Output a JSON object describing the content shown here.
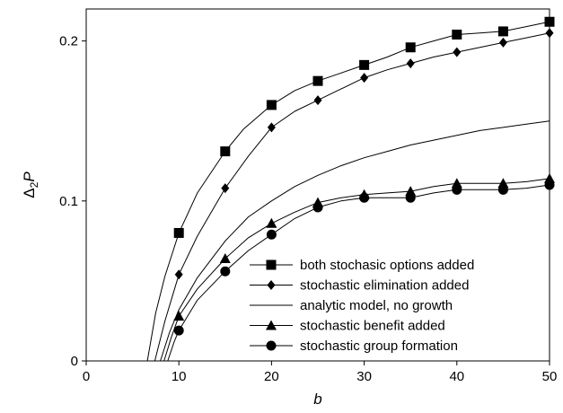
{
  "chart_data": {
    "type": "line",
    "xlabel": "b",
    "ylabel_main": "Δ",
    "ylabel_sub": "2",
    "ylabel_var": "P",
    "xlim": [
      0,
      50
    ],
    "ylim": [
      0,
      0.22
    ],
    "x_ticks": [
      {
        "value": 0,
        "label": "0"
      },
      {
        "value": 10,
        "label": "10"
      },
      {
        "value": 20,
        "label": "20"
      },
      {
        "value": 30,
        "label": "30"
      },
      {
        "value": 40,
        "label": "40"
      },
      {
        "value": 50,
        "label": "50"
      }
    ],
    "y_ticks": [
      {
        "value": 0,
        "label": "0"
      },
      {
        "value": 0.1,
        "label": "0.1"
      },
      {
        "value": 0.2,
        "label": "0.2"
      }
    ],
    "grid": false,
    "legend_position": "bottom-right",
    "series": [
      {
        "name": "both stochasic options added",
        "marker": "square",
        "curve_x": [
          6.6,
          7.5,
          8.5,
          10,
          12,
          15,
          17,
          20,
          22.5,
          25,
          27.5,
          30,
          32.5,
          35,
          37.5,
          40,
          42.5,
          45,
          47.5,
          50
        ],
        "curve_y": [
          0,
          0.03,
          0.053,
          0.08,
          0.105,
          0.131,
          0.145,
          0.16,
          0.169,
          0.175,
          0.18,
          0.185,
          0.19,
          0.196,
          0.2,
          0.204,
          0.205,
          0.206,
          0.209,
          0.212
        ],
        "markers_x": [
          10,
          15,
          20,
          25,
          30,
          35,
          40,
          45,
          50
        ],
        "markers_y": [
          0.08,
          0.131,
          0.16,
          0.175,
          0.185,
          0.196,
          0.204,
          0.206,
          0.212
        ]
      },
      {
        "name": "stochastic elimination added",
        "marker": "diamond",
        "curve_x": [
          7.4,
          8.5,
          10,
          12,
          15,
          17.5,
          20,
          22.5,
          25,
          27.5,
          30,
          32.5,
          35,
          37.5,
          40,
          42.5,
          45,
          47.5,
          50
        ],
        "curve_y": [
          0,
          0.025,
          0.054,
          0.078,
          0.108,
          0.128,
          0.146,
          0.156,
          0.163,
          0.17,
          0.177,
          0.182,
          0.186,
          0.19,
          0.193,
          0.196,
          0.199,
          0.202,
          0.205
        ],
        "markers_x": [
          10,
          15,
          20,
          25,
          30,
          35,
          40,
          45,
          50
        ],
        "markers_y": [
          0.054,
          0.108,
          0.146,
          0.163,
          0.177,
          0.186,
          0.193,
          0.199,
          0.205
        ]
      },
      {
        "name": "analytic model, no growth",
        "marker": "none",
        "curve_x": [
          8,
          9,
          10,
          12,
          15,
          17.5,
          20,
          22.5,
          25,
          27.5,
          30,
          32.5,
          35,
          37.5,
          40,
          42.5,
          45,
          47.5,
          50
        ],
        "curve_y": [
          0,
          0.018,
          0.032,
          0.052,
          0.075,
          0.09,
          0.1,
          0.109,
          0.116,
          0.122,
          0.127,
          0.131,
          0.135,
          0.138,
          0.141,
          0.144,
          0.146,
          0.148,
          0.15
        ],
        "markers_x": [],
        "markers_y": []
      },
      {
        "name": "stochastic benefit added",
        "marker": "triangle",
        "curve_x": [
          8.4,
          9.2,
          10,
          12,
          15,
          17.5,
          20,
          22.5,
          25,
          27.5,
          30,
          32.5,
          35,
          37.5,
          40,
          42.5,
          45,
          47.5,
          50
        ],
        "curve_y": [
          0,
          0.015,
          0.028,
          0.045,
          0.064,
          0.077,
          0.086,
          0.093,
          0.099,
          0.102,
          0.104,
          0.105,
          0.106,
          0.109,
          0.111,
          0.111,
          0.111,
          0.112,
          0.114
        ],
        "markers_x": [
          10,
          15,
          20,
          25,
          30,
          35,
          40,
          45,
          50
        ],
        "markers_y": [
          0.028,
          0.064,
          0.086,
          0.099,
          0.104,
          0.106,
          0.111,
          0.111,
          0.114
        ]
      },
      {
        "name": "stochastic group formation",
        "marker": "circle",
        "curve_x": [
          8.8,
          9.5,
          10,
          12,
          15,
          17.5,
          20,
          22.5,
          25,
          27.5,
          30,
          32.5,
          35,
          37.5,
          40,
          42.5,
          45,
          47.5,
          50
        ],
        "curve_y": [
          0,
          0.012,
          0.019,
          0.038,
          0.056,
          0.069,
          0.079,
          0.089,
          0.096,
          0.1,
          0.102,
          0.102,
          0.102,
          0.105,
          0.107,
          0.107,
          0.107,
          0.108,
          0.11
        ],
        "markers_x": [
          10,
          15,
          20,
          25,
          30,
          35,
          40,
          45,
          50
        ],
        "markers_y": [
          0.019,
          0.056,
          0.079,
          0.096,
          0.102,
          0.102,
          0.107,
          0.107,
          0.11
        ]
      }
    ]
  }
}
